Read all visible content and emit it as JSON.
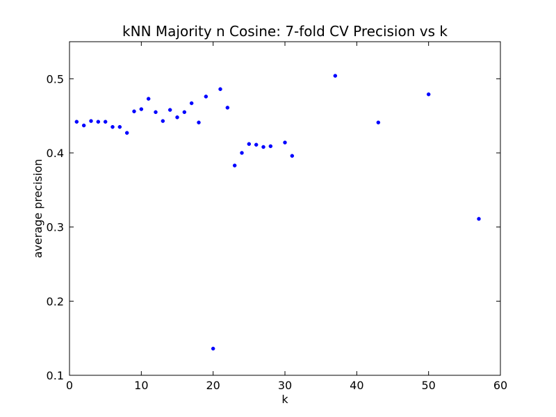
{
  "chart_data": {
    "type": "scatter",
    "title": "kNN Majority n Cosine: 7-fold CV Precision vs k",
    "xlabel": "k",
    "ylabel": "average precision",
    "xlim": [
      0,
      60
    ],
    "ylim": [
      0.1,
      0.55
    ],
    "xticks": [
      0,
      10,
      20,
      30,
      40,
      50,
      60
    ],
    "xtick_labels": [
      "0",
      "10",
      "20",
      "30",
      "40",
      "50",
      "60"
    ],
    "yticks": [
      0.1,
      0.2,
      0.3,
      0.4,
      0.5
    ],
    "ytick_labels": [
      "0.1",
      "0.2",
      "0.3",
      "0.4",
      "0.5"
    ],
    "grid": false,
    "marker_color": "#0000ff",
    "series": [
      {
        "x": [
          1,
          2,
          3,
          4,
          5,
          6,
          7,
          8,
          9,
          10,
          11,
          12,
          13,
          14,
          15,
          16,
          17,
          18,
          19,
          20,
          21,
          22,
          23,
          24,
          25,
          26,
          27,
          28,
          30,
          31,
          37,
          43,
          50,
          57
        ],
        "y": [
          0.442,
          0.437,
          0.443,
          0.442,
          0.442,
          0.435,
          0.435,
          0.427,
          0.456,
          0.459,
          0.473,
          0.455,
          0.443,
          0.458,
          0.448,
          0.455,
          0.467,
          0.441,
          0.476,
          0.136,
          0.486,
          0.461,
          0.383,
          0.4,
          0.412,
          0.411,
          0.408,
          0.409,
          0.414,
          0.396,
          0.504,
          0.441,
          0.479,
          0.311
        ]
      }
    ]
  }
}
